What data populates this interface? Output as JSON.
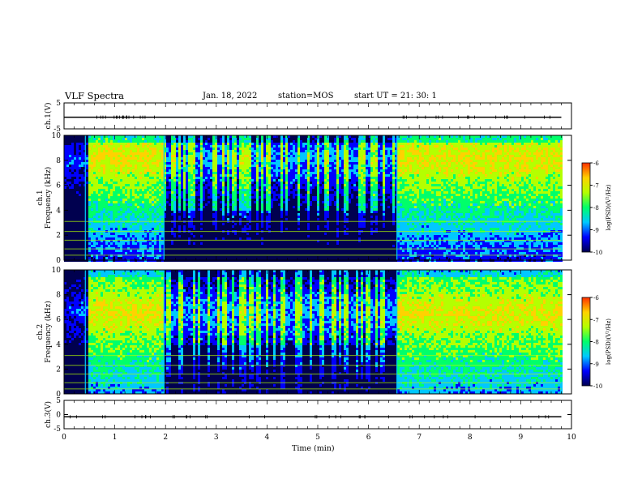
{
  "header": {
    "title": "VLF Spectra",
    "date": "Jan. 18, 2022",
    "station": "station=MOS",
    "start": "start  UT  =   21: 30: 1"
  },
  "colors": {
    "spectrogram_stops": [
      "#00004f",
      "#0000ff",
      "#00c8ff",
      "#00ff6a",
      "#b4ff00",
      "#ffd200",
      "#ff3000",
      "#ffffff"
    ],
    "trace": "#000000",
    "background": "#ffffff"
  },
  "chart_data": [
    {
      "type": "line",
      "name_label": "ch.1(V)",
      "ylabel": "ch.1(V)",
      "ylim": [
        -5,
        5
      ],
      "yticks": [
        "5",
        "-5"
      ],
      "x": [
        0,
        9.8
      ],
      "values": [
        -0.5,
        -0.5
      ],
      "note_spikes": "small amplitude impulses near 0.6-1.8 min and 6.6-9.8 min"
    },
    {
      "type": "heatmap",
      "ylabel": "ch.1\nFrequency (kHz)",
      "ylabel_lines": [
        "ch.1",
        "Frequency (kHz)"
      ],
      "ylim": [
        0,
        10
      ],
      "yticks": [
        "0",
        "2",
        "4",
        "6",
        "8",
        "10"
      ],
      "xlim": [
        0,
        10
      ],
      "colorbar": {
        "label": "log(PSD)(V²/Hz)",
        "range": [
          -10,
          -6
        ],
        "ticks": [
          "-6",
          "-7",
          "-8",
          "-9",
          "-10"
        ]
      },
      "segments_min": [
        {
          "from": 0.0,
          "to": 0.45,
          "level": "low"
        },
        {
          "from": 0.45,
          "to": 1.95,
          "level": "high"
        },
        {
          "from": 1.95,
          "to": 6.55,
          "level": "bursty"
        },
        {
          "from": 6.55,
          "to": 9.8,
          "level": "high"
        }
      ]
    },
    {
      "type": "heatmap",
      "ylabel": "ch.2\nFrequency (kHz)",
      "ylabel_lines": [
        "ch.2",
        "Frequency (kHz)"
      ],
      "ylim": [
        0,
        10
      ],
      "yticks": [
        "0",
        "2",
        "4",
        "6",
        "8",
        "10"
      ],
      "xlim": [
        0,
        10
      ],
      "colorbar": {
        "label": "log(PSD)(V²/Hz)",
        "range": [
          -10,
          -6
        ],
        "ticks": [
          "-6",
          "-7",
          "-8",
          "-9",
          "-10"
        ]
      },
      "segments_min": [
        {
          "from": 0.0,
          "to": 0.45,
          "level": "low"
        },
        {
          "from": 0.45,
          "to": 1.95,
          "level": "high"
        },
        {
          "from": 1.95,
          "to": 6.55,
          "level": "bursty"
        },
        {
          "from": 6.55,
          "to": 9.8,
          "level": "high"
        }
      ]
    },
    {
      "type": "line",
      "ylabel": "ch.3(V)",
      "ylim": [
        -5,
        5
      ],
      "yticks": [
        "5",
        "0",
        "-5"
      ],
      "x": [
        0,
        9.8
      ],
      "values": [
        -0.8,
        -0.8
      ]
    }
  ],
  "xaxis": {
    "label": "Time (min)",
    "range": [
      0,
      10
    ],
    "ticks": [
      "0",
      "1",
      "2",
      "3",
      "4",
      "5",
      "6",
      "7",
      "8",
      "9",
      "10"
    ]
  }
}
